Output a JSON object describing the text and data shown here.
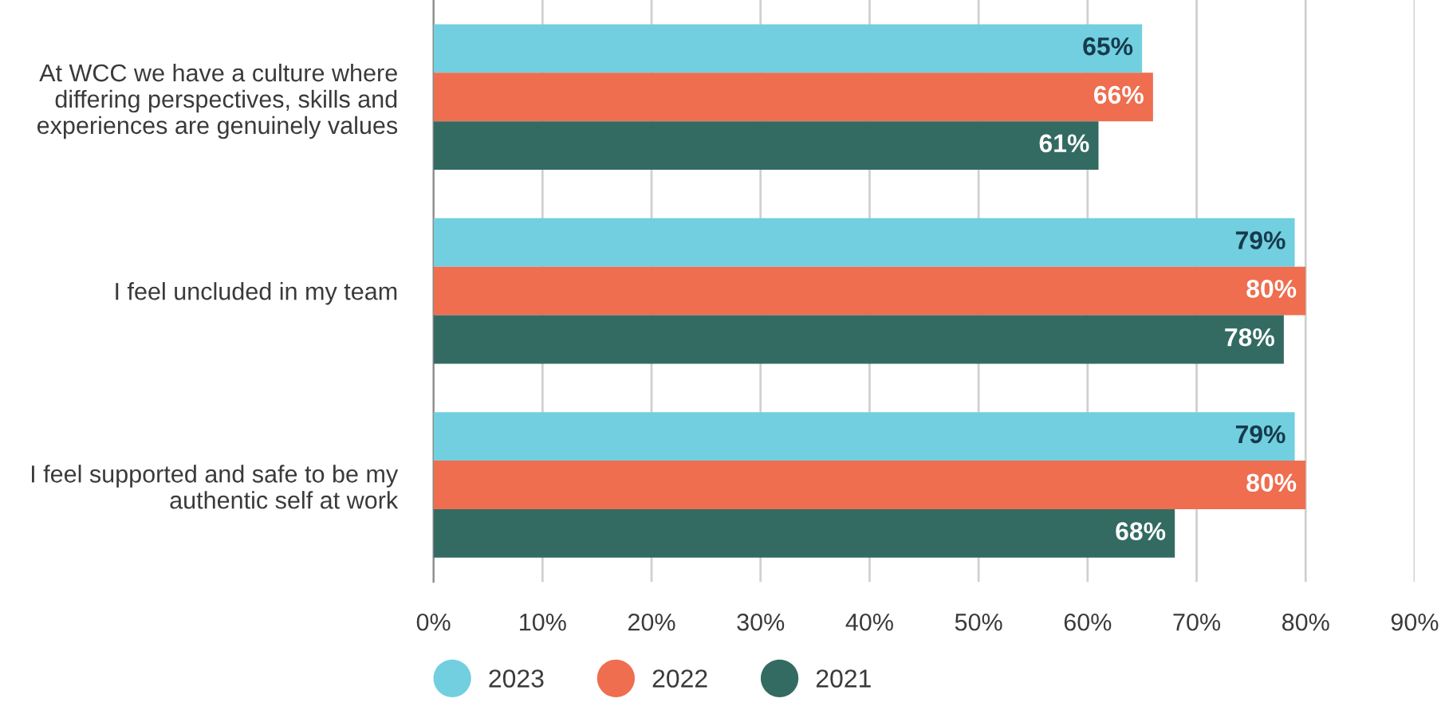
{
  "chart_data": {
    "type": "bar",
    "orientation": "horizontal",
    "categories": [
      "At WCC we have a culture where\ndiffering perspectives, skills and\nexperiences are genuinely values",
      "I feel uncluded in my team",
      "I feel supported and safe to be my\nauthentic self at work"
    ],
    "series": [
      {
        "name": "2023",
        "color": "#72cfdf",
        "values": [
          65,
          79,
          79
        ],
        "value_labels": [
          "65%",
          "79%",
          "79%"
        ]
      },
      {
        "name": "2022",
        "color": "#ee6e4f",
        "values": [
          66,
          80,
          80
        ],
        "value_labels": [
          "66%",
          "80%",
          "80%"
        ]
      },
      {
        "name": "2021",
        "color": "#336b63",
        "values": [
          61,
          78,
          68
        ],
        "value_labels": [
          "61%",
          "78%",
          "68%"
        ]
      }
    ],
    "xlim": [
      0,
      90
    ],
    "xticks": [
      {
        "value": 0,
        "label": "0%"
      },
      {
        "value": 10,
        "label": "10%"
      },
      {
        "value": 20,
        "label": "20%"
      },
      {
        "value": 30,
        "label": "30%"
      },
      {
        "value": 40,
        "label": "40%"
      },
      {
        "value": 50,
        "label": "50%"
      },
      {
        "value": 60,
        "label": "60%"
      },
      {
        "value": 70,
        "label": "70%"
      },
      {
        "value": 80,
        "label": "80%"
      },
      {
        "value": 90,
        "label": "90%"
      }
    ],
    "grid": "x",
    "legend": "bottom"
  }
}
